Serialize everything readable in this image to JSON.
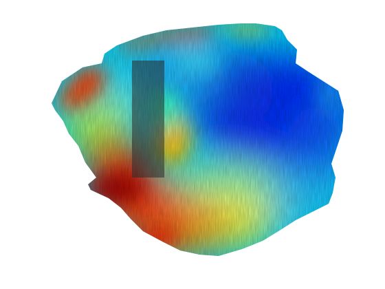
{
  "colormap": {
    "name": "jet",
    "stops": [
      "#00008f",
      "#0020ff",
      "#00c8ff",
      "#7dff7a",
      "#ffe600",
      "#ff6a00",
      "#c80000"
    ]
  },
  "selection": {
    "fill": "#2b2b2b",
    "opacity": 0.55
  }
}
